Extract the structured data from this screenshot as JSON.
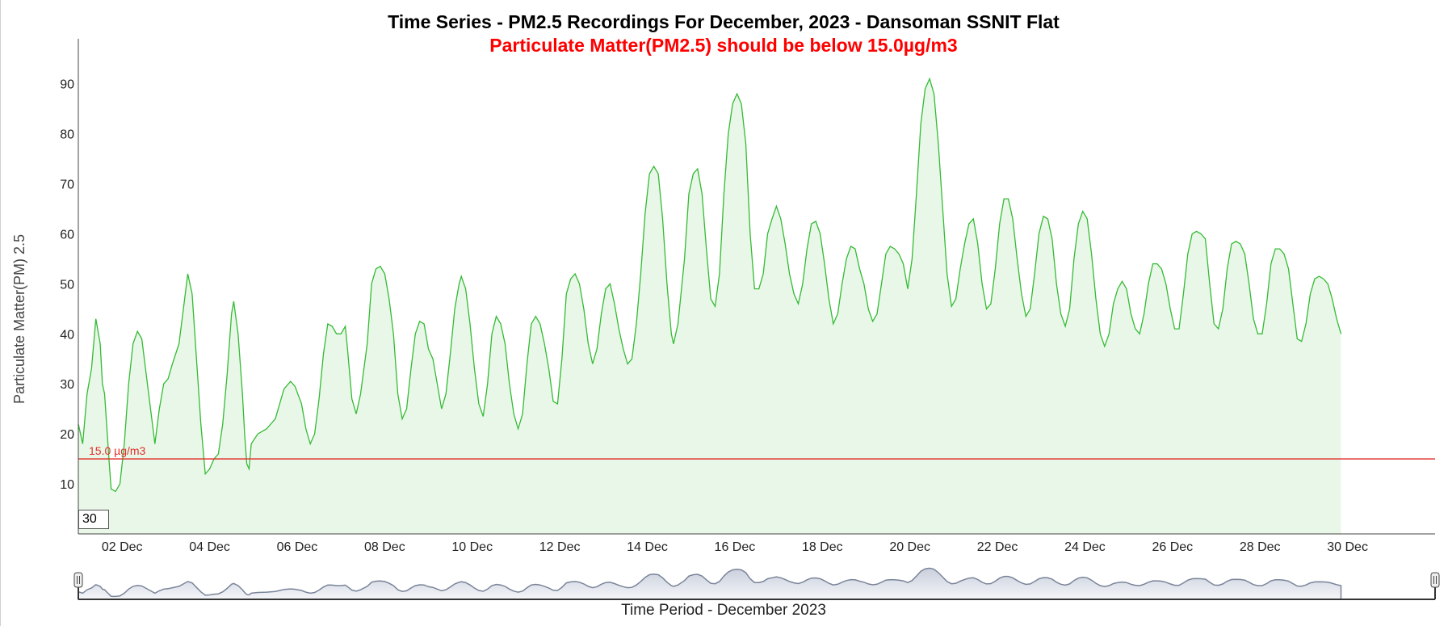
{
  "chart_data": {
    "type": "area",
    "title": "Time Series - PM2.5 Recordings For December, 2023 - Dansoman SSNIT Flat",
    "subtitle": "Particulate Matter(PM2.5) should be below 15.0µg/m3",
    "xlabel": "Time Period - December 2023",
    "ylabel": "Particulate Matter(PM) 2.5",
    "ylim": [
      0,
      99
    ],
    "xlim": [
      1,
      32
    ],
    "y_ticks": [
      10,
      20,
      30,
      40,
      50,
      60,
      70,
      80,
      90
    ],
    "x_ticks": [
      {
        "day": 2,
        "label": "02 Dec"
      },
      {
        "day": 4,
        "label": "04 Dec"
      },
      {
        "day": 6,
        "label": "06 Dec"
      },
      {
        "day": 8,
        "label": "08 Dec"
      },
      {
        "day": 10,
        "label": "10 Dec"
      },
      {
        "day": 12,
        "label": "12 Dec"
      },
      {
        "day": 14,
        "label": "14 Dec"
      },
      {
        "day": 16,
        "label": "16 Dec"
      },
      {
        "day": 18,
        "label": "18 Dec"
      },
      {
        "day": 20,
        "label": "20 Dec"
      },
      {
        "day": 22,
        "label": "22 Dec"
      },
      {
        "day": 24,
        "label": "24 Dec"
      },
      {
        "day": 26,
        "label": "26 Dec"
      },
      {
        "day": 28,
        "label": "28 Dec"
      },
      {
        "day": 30,
        "label": "30 Dec"
      }
    ],
    "threshold": {
      "value": 15.0,
      "label": "15.0 µg/m3",
      "color": "#e0302a"
    },
    "rolling_window": "30",
    "series": [
      {
        "color": "#33bb33",
        "fill": "#e9f7e9",
        "points": [
          [
            1.0,
            22
          ],
          [
            1.05,
            20
          ],
          [
            1.1,
            18
          ],
          [
            1.2,
            28
          ],
          [
            1.3,
            33
          ],
          [
            1.4,
            43
          ],
          [
            1.5,
            38
          ],
          [
            1.55,
            30
          ],
          [
            1.6,
            28
          ],
          [
            1.7,
            15
          ],
          [
            1.75,
            9
          ],
          [
            1.85,
            8.5
          ],
          [
            1.95,
            10
          ],
          [
            2.05,
            18
          ],
          [
            2.15,
            30
          ],
          [
            2.25,
            38
          ],
          [
            2.35,
            40.5
          ],
          [
            2.45,
            39
          ],
          [
            2.55,
            32
          ],
          [
            2.65,
            25
          ],
          [
            2.75,
            18
          ],
          [
            2.85,
            25
          ],
          [
            2.95,
            30
          ],
          [
            3.05,
            31
          ],
          [
            3.15,
            34
          ],
          [
            3.3,
            38
          ],
          [
            3.4,
            45
          ],
          [
            3.5,
            52
          ],
          [
            3.6,
            48
          ],
          [
            3.7,
            35
          ],
          [
            3.8,
            22
          ],
          [
            3.9,
            12
          ],
          [
            4.0,
            13
          ],
          [
            4.1,
            15
          ],
          [
            4.2,
            16
          ],
          [
            4.3,
            22
          ],
          [
            4.4,
            32
          ],
          [
            4.5,
            44
          ],
          [
            4.55,
            46.5
          ],
          [
            4.65,
            40
          ],
          [
            4.75,
            28
          ],
          [
            4.8,
            20
          ],
          [
            4.85,
            14
          ],
          [
            4.9,
            13
          ],
          [
            4.95,
            18
          ],
          [
            5.1,
            20
          ],
          [
            5.3,
            21
          ],
          [
            5.5,
            23
          ],
          [
            5.6,
            26
          ],
          [
            5.7,
            29
          ],
          [
            5.85,
            30.5
          ],
          [
            5.95,
            29.5
          ],
          [
            6.1,
            26
          ],
          [
            6.2,
            21
          ],
          [
            6.3,
            18
          ],
          [
            6.4,
            20
          ],
          [
            6.5,
            27
          ],
          [
            6.6,
            36
          ],
          [
            6.7,
            42
          ],
          [
            6.8,
            41.5
          ],
          [
            6.9,
            40
          ],
          [
            7.0,
            40
          ],
          [
            7.1,
            41.5
          ],
          [
            7.15,
            37
          ],
          [
            7.25,
            27
          ],
          [
            7.35,
            24
          ],
          [
            7.45,
            28
          ],
          [
            7.6,
            38
          ],
          [
            7.7,
            50
          ],
          [
            7.8,
            53
          ],
          [
            7.9,
            53.5
          ],
          [
            8.0,
            52
          ],
          [
            8.1,
            47
          ],
          [
            8.2,
            40
          ],
          [
            8.3,
            28
          ],
          [
            8.4,
            23
          ],
          [
            8.5,
            25
          ],
          [
            8.6,
            33
          ],
          [
            8.7,
            40
          ],
          [
            8.8,
            42.5
          ],
          [
            8.9,
            42
          ],
          [
            9.0,
            37
          ],
          [
            9.1,
            35
          ],
          [
            9.2,
            30
          ],
          [
            9.3,
            25
          ],
          [
            9.4,
            28
          ],
          [
            9.5,
            36
          ],
          [
            9.6,
            45
          ],
          [
            9.7,
            50
          ],
          [
            9.75,
            51.5
          ],
          [
            9.85,
            49
          ],
          [
            9.95,
            42
          ],
          [
            10.05,
            33
          ],
          [
            10.15,
            26
          ],
          [
            10.25,
            23.5
          ],
          [
            10.35,
            30
          ],
          [
            10.45,
            40
          ],
          [
            10.55,
            43.5
          ],
          [
            10.65,
            42
          ],
          [
            10.75,
            38
          ],
          [
            10.85,
            30
          ],
          [
            10.95,
            24
          ],
          [
            11.05,
            21
          ],
          [
            11.15,
            24
          ],
          [
            11.25,
            34
          ],
          [
            11.35,
            42
          ],
          [
            11.45,
            43.5
          ],
          [
            11.55,
            42
          ],
          [
            11.65,
            38
          ],
          [
            11.75,
            33
          ],
          [
            11.85,
            26.5
          ],
          [
            11.95,
            26
          ],
          [
            12.05,
            35
          ],
          [
            12.15,
            48
          ],
          [
            12.25,
            51
          ],
          [
            12.35,
            52
          ],
          [
            12.45,
            50
          ],
          [
            12.55,
            45
          ],
          [
            12.65,
            38
          ],
          [
            12.75,
            34
          ],
          [
            12.85,
            37
          ],
          [
            12.95,
            44
          ],
          [
            13.05,
            49
          ],
          [
            13.15,
            50
          ],
          [
            13.25,
            46
          ],
          [
            13.35,
            41
          ],
          [
            13.45,
            37
          ],
          [
            13.55,
            34
          ],
          [
            13.65,
            35
          ],
          [
            13.75,
            42
          ],
          [
            13.85,
            52
          ],
          [
            13.95,
            64
          ],
          [
            14.05,
            72
          ],
          [
            14.15,
            73.5
          ],
          [
            14.25,
            72
          ],
          [
            14.35,
            63
          ],
          [
            14.45,
            50
          ],
          [
            14.55,
            40
          ],
          [
            14.6,
            38
          ],
          [
            14.7,
            42
          ],
          [
            14.85,
            55
          ],
          [
            14.95,
            68
          ],
          [
            15.05,
            72
          ],
          [
            15.15,
            73
          ],
          [
            15.25,
            68
          ],
          [
            15.35,
            57
          ],
          [
            15.45,
            47
          ],
          [
            15.55,
            45.5
          ],
          [
            15.65,
            52
          ],
          [
            15.75,
            68
          ],
          [
            15.85,
            80
          ],
          [
            15.95,
            86
          ],
          [
            16.05,
            88
          ],
          [
            16.15,
            86
          ],
          [
            16.25,
            78
          ],
          [
            16.35,
            60
          ],
          [
            16.45,
            49
          ],
          [
            16.55,
            49
          ],
          [
            16.65,
            52
          ],
          [
            16.75,
            60
          ],
          [
            16.85,
            63
          ],
          [
            16.95,
            65.5
          ],
          [
            17.05,
            63
          ],
          [
            17.15,
            58
          ],
          [
            17.25,
            52
          ],
          [
            17.35,
            48
          ],
          [
            17.45,
            46
          ],
          [
            17.55,
            50
          ],
          [
            17.65,
            57
          ],
          [
            17.75,
            62
          ],
          [
            17.85,
            62.5
          ],
          [
            17.95,
            60
          ],
          [
            18.05,
            54
          ],
          [
            18.15,
            47
          ],
          [
            18.25,
            42
          ],
          [
            18.35,
            44
          ],
          [
            18.45,
            50
          ],
          [
            18.55,
            55
          ],
          [
            18.65,
            57.5
          ],
          [
            18.75,
            57
          ],
          [
            18.85,
            53
          ],
          [
            18.95,
            50
          ],
          [
            19.05,
            45
          ],
          [
            19.15,
            42.5
          ],
          [
            19.25,
            44
          ],
          [
            19.35,
            50
          ],
          [
            19.45,
            56
          ],
          [
            19.55,
            57.5
          ],
          [
            19.65,
            57
          ],
          [
            19.75,
            56
          ],
          [
            19.85,
            54
          ],
          [
            19.95,
            49
          ],
          [
            20.05,
            55
          ],
          [
            20.15,
            68
          ],
          [
            20.25,
            82
          ],
          [
            20.35,
            89
          ],
          [
            20.45,
            91
          ],
          [
            20.55,
            88
          ],
          [
            20.65,
            78
          ],
          [
            20.75,
            65
          ],
          [
            20.85,
            52
          ],
          [
            20.95,
            45.5
          ],
          [
            21.05,
            47
          ],
          [
            21.15,
            53
          ],
          [
            21.25,
            58
          ],
          [
            21.35,
            62
          ],
          [
            21.45,
            63
          ],
          [
            21.55,
            58
          ],
          [
            21.65,
            50
          ],
          [
            21.75,
            45
          ],
          [
            21.85,
            46
          ],
          [
            21.95,
            53
          ],
          [
            22.05,
            62
          ],
          [
            22.15,
            67
          ],
          [
            22.25,
            67
          ],
          [
            22.35,
            63
          ],
          [
            22.45,
            55
          ],
          [
            22.55,
            48
          ],
          [
            22.65,
            43.5
          ],
          [
            22.75,
            45
          ],
          [
            22.85,
            52
          ],
          [
            22.95,
            60
          ],
          [
            23.05,
            63.5
          ],
          [
            23.15,
            63
          ],
          [
            23.25,
            59
          ],
          [
            23.35,
            50
          ],
          [
            23.45,
            44
          ],
          [
            23.55,
            41.5
          ],
          [
            23.65,
            45
          ],
          [
            23.75,
            55
          ],
          [
            23.85,
            62
          ],
          [
            23.95,
            64.5
          ],
          [
            24.05,
            63
          ],
          [
            24.15,
            56
          ],
          [
            24.25,
            47
          ],
          [
            24.35,
            40
          ],
          [
            24.45,
            37.5
          ],
          [
            24.55,
            40
          ],
          [
            24.65,
            46
          ],
          [
            24.75,
            49
          ],
          [
            24.85,
            50.5
          ],
          [
            24.95,
            49
          ],
          [
            25.05,
            44
          ],
          [
            25.15,
            41
          ],
          [
            25.25,
            40
          ],
          [
            25.35,
            44
          ],
          [
            25.45,
            50
          ],
          [
            25.55,
            54
          ],
          [
            25.65,
            54
          ],
          [
            25.75,
            53
          ],
          [
            25.85,
            50
          ],
          [
            25.95,
            45
          ],
          [
            26.05,
            41
          ],
          [
            26.15,
            41
          ],
          [
            26.25,
            48
          ],
          [
            26.35,
            56
          ],
          [
            26.45,
            60
          ],
          [
            26.55,
            60.5
          ],
          [
            26.65,
            60
          ],
          [
            26.75,
            59
          ],
          [
            26.85,
            50
          ],
          [
            26.95,
            42
          ],
          [
            27.05,
            41
          ],
          [
            27.15,
            45
          ],
          [
            27.25,
            53
          ],
          [
            27.35,
            58
          ],
          [
            27.45,
            58.5
          ],
          [
            27.55,
            58
          ],
          [
            27.65,
            56
          ],
          [
            27.75,
            50
          ],
          [
            27.85,
            43
          ],
          [
            27.95,
            40
          ],
          [
            28.05,
            40
          ],
          [
            28.15,
            46
          ],
          [
            28.25,
            54
          ],
          [
            28.35,
            57
          ],
          [
            28.45,
            57
          ],
          [
            28.55,
            56
          ],
          [
            28.65,
            53
          ],
          [
            28.75,
            46
          ],
          [
            28.85,
            39
          ],
          [
            28.95,
            38.5
          ],
          [
            29.05,
            42
          ],
          [
            29.15,
            48
          ],
          [
            29.25,
            51
          ],
          [
            29.35,
            51.5
          ],
          [
            29.45,
            51
          ],
          [
            29.55,
            50
          ],
          [
            29.65,
            47
          ],
          [
            29.75,
            43
          ],
          [
            29.85,
            40
          ]
        ]
      }
    ]
  }
}
